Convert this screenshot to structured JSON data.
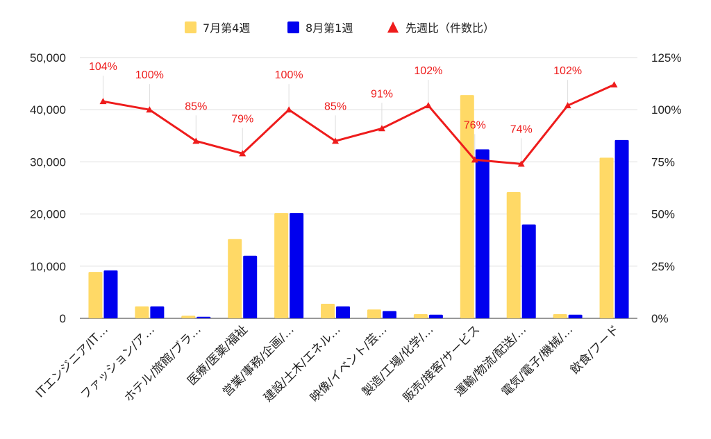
{
  "chart_data": {
    "type": "bar",
    "categories": [
      "ITエンジニア/IT…",
      "ファッション/ア…",
      "ホテル/旅館/ブラ…",
      "医療/医薬/福祉",
      "営業/事務/企画/…",
      "建設/土木/エネル…",
      "映像/イベント/芸…",
      "製造/工場/化学/…",
      "販売/接客/サービス",
      "運輸/物流/配送/…",
      "電気/電子/機械/…",
      "飲食/フード"
    ],
    "series": [
      {
        "name": "7月第4週",
        "type": "bar",
        "axis": "left",
        "color": "#ffd966",
        "values": [
          8900,
          2300,
          500,
          15200,
          20200,
          2800,
          1700,
          800,
          42800,
          24200,
          800,
          30800
        ]
      },
      {
        "name": "8月第1週",
        "type": "bar",
        "axis": "left",
        "color": "#0000ee",
        "values": [
          9200,
          2300,
          300,
          12000,
          20200,
          2300,
          1400,
          700,
          32400,
          18000,
          700,
          34200
        ]
      },
      {
        "name": "先週比（件数比）",
        "type": "line",
        "axis": "right",
        "color": "#ee1c1c",
        "marker": "triangle",
        "values": [
          104,
          100,
          85,
          79,
          100,
          85,
          91,
          102,
          76,
          74,
          102,
          112
        ]
      }
    ],
    "data_labels": [
      "104%",
      "100%",
      "85%",
      "79%",
      "100%",
      "85%",
      "91%",
      "102%",
      "76%",
      "74%",
      "102%",
      ""
    ],
    "y_left": {
      "min": 0,
      "max": 50000,
      "ticks": [
        "0",
        "10,000",
        "20,000",
        "30,000",
        "40,000",
        "50,000"
      ]
    },
    "y_right": {
      "min": 0,
      "max": 125,
      "ticks": [
        "0%",
        "25%",
        "50%",
        "75%",
        "100%",
        "125%"
      ]
    },
    "title": "",
    "xlabel": "",
    "ylabel": "",
    "grid": true,
    "legend": "top-center"
  }
}
